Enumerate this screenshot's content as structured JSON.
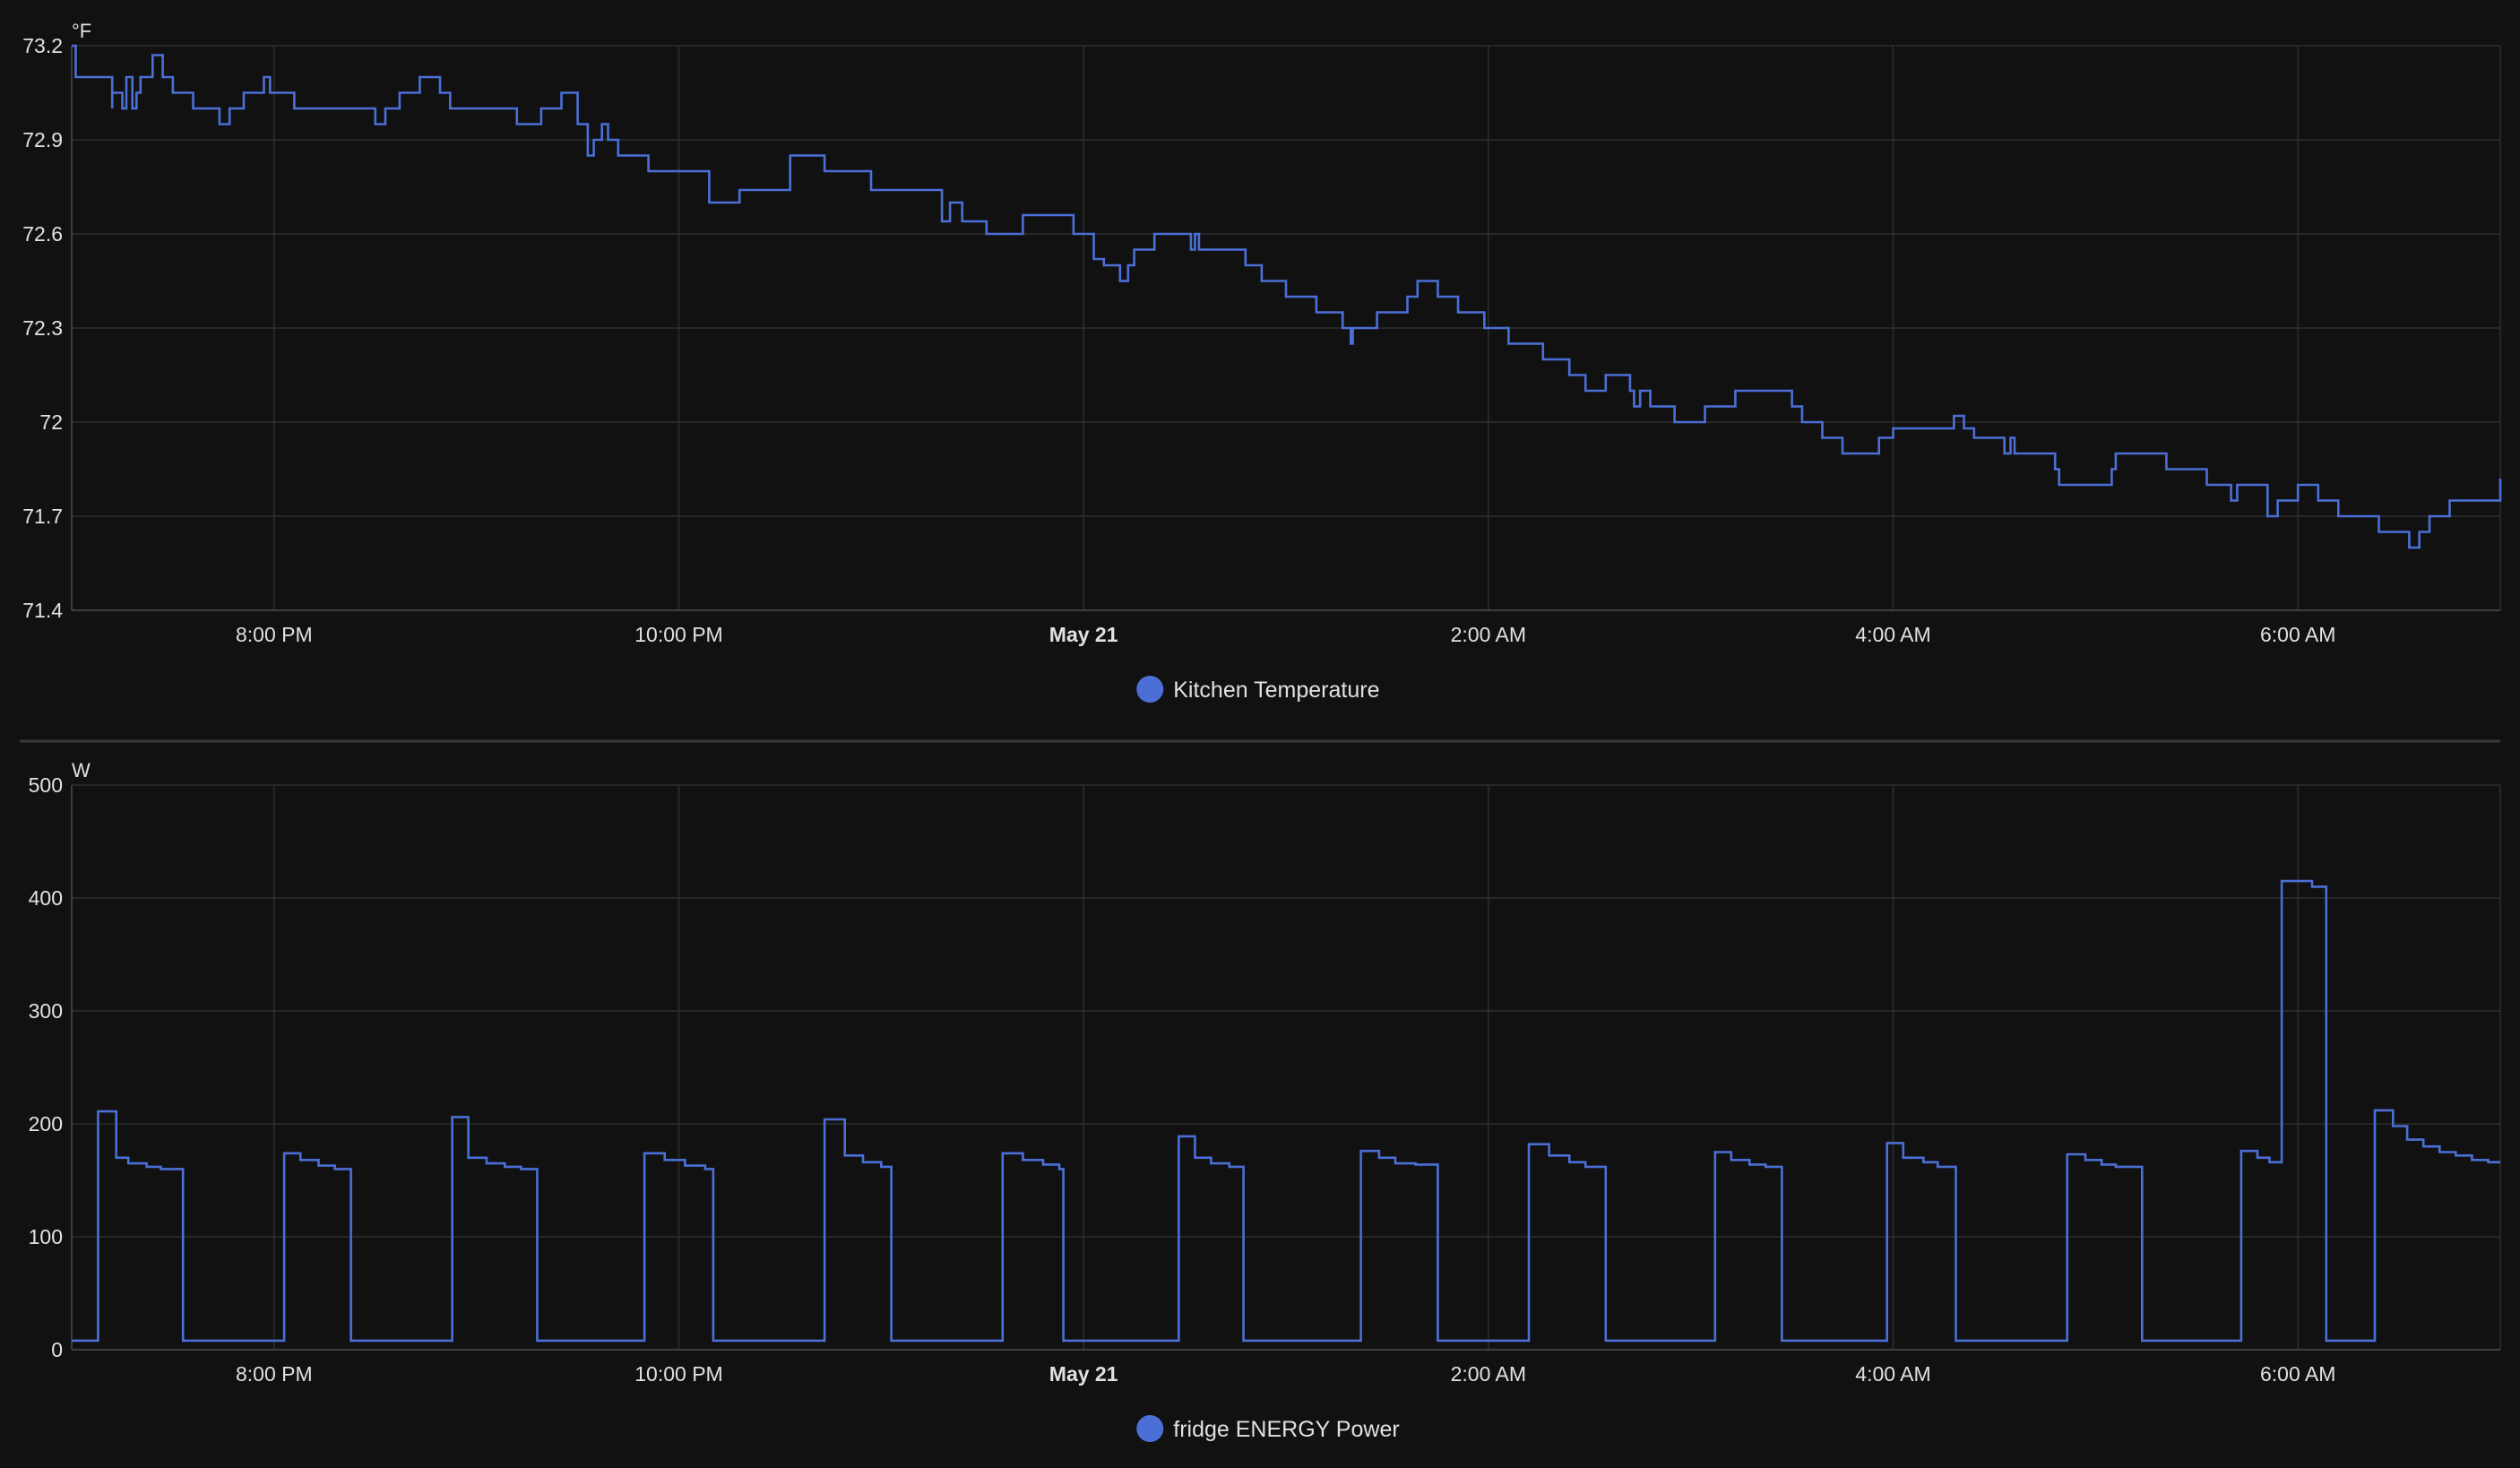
{
  "colors": {
    "background": "#111111",
    "series": "#4b6fd6",
    "grid": "#2f2f2f",
    "divider": "#3a3a3a",
    "text": "#e1e1e1"
  },
  "chart_data": [
    {
      "type": "line",
      "step": true,
      "unit": "°F",
      "x_ticks": [
        "8:00 PM",
        "10:00 PM",
        "May 21",
        "2:00 AM",
        "4:00 AM",
        "6:00 AM"
      ],
      "x_ticks_bold": [
        false,
        false,
        true,
        false,
        false,
        false
      ],
      "x_range_hours": [
        -5.0,
        7.0
      ],
      "x_tick_hours": [
        -4,
        -2,
        0,
        2,
        4,
        6
      ],
      "y_ticks": [
        "73.2",
        "72.9",
        "72.6",
        "72.3",
        "72",
        "71.7",
        "71.4"
      ],
      "ylim": [
        71.4,
        73.2
      ],
      "grid": true,
      "legend_position": "bottom-center",
      "series": [
        {
          "name": "Kitchen Temperature",
          "x": [
            -5.0,
            -4.98,
            -4.8,
            -4.8,
            -4.75,
            -4.73,
            -4.7,
            -4.68,
            -4.66,
            -4.62,
            -4.6,
            -4.55,
            -4.5,
            -4.4,
            -4.27,
            -4.22,
            -4.15,
            -4.05,
            -4.02,
            -3.9,
            -3.5,
            -3.45,
            -3.38,
            -3.28,
            -3.18,
            -3.13,
            -2.8,
            -2.68,
            -2.58,
            -2.5,
            -2.45,
            -2.42,
            -2.38,
            -2.35,
            -2.3,
            -2.15,
            -1.85,
            -1.7,
            -1.45,
            -1.28,
            -1.05,
            -0.7,
            -0.66,
            -0.6,
            -0.48,
            -0.3,
            -0.05,
            0.05,
            0.1,
            0.18,
            0.22,
            0.25,
            0.35,
            0.53,
            0.55,
            0.57,
            0.8,
            0.88,
            1.0,
            1.15,
            1.28,
            1.32,
            1.33,
            1.45,
            1.6,
            1.65,
            1.75,
            1.85,
            1.98,
            2.1,
            2.27,
            2.4,
            2.48,
            2.58,
            2.7,
            2.72,
            2.75,
            2.8,
            2.92,
            3.07,
            3.22,
            3.5,
            3.55,
            3.65,
            3.75,
            3.93,
            4.0,
            4.3,
            4.35,
            4.4,
            4.55,
            4.58,
            4.6,
            4.8,
            4.82,
            5.08,
            5.1,
            5.35,
            5.55,
            5.67,
            5.7,
            5.85,
            5.9,
            6.0,
            6.1,
            6.2,
            6.4,
            6.55,
            6.6,
            6.65,
            6.75,
            7.0
          ],
          "values": [
            73.2,
            73.1,
            73.0,
            73.05,
            73.0,
            73.1,
            73.0,
            73.05,
            73.1,
            73.1,
            73.17,
            73.1,
            73.05,
            73.0,
            72.95,
            73.0,
            73.05,
            73.1,
            73.05,
            73.0,
            72.95,
            73.0,
            73.05,
            73.1,
            73.05,
            73.0,
            72.95,
            73.0,
            73.05,
            72.95,
            72.85,
            72.9,
            72.95,
            72.9,
            72.85,
            72.8,
            72.7,
            72.74,
            72.85,
            72.8,
            72.74,
            72.64,
            72.7,
            72.64,
            72.6,
            72.66,
            72.6,
            72.52,
            72.5,
            72.45,
            72.5,
            72.55,
            72.6,
            72.55,
            72.6,
            72.55,
            72.5,
            72.45,
            72.4,
            72.35,
            72.3,
            72.25,
            72.3,
            72.35,
            72.4,
            72.45,
            72.4,
            72.35,
            72.3,
            72.25,
            72.2,
            72.15,
            72.1,
            72.15,
            72.1,
            72.05,
            72.1,
            72.05,
            72.0,
            72.05,
            72.1,
            72.05,
            72.0,
            71.95,
            71.9,
            71.95,
            71.98,
            72.02,
            71.98,
            71.95,
            71.9,
            71.95,
            71.9,
            71.85,
            71.8,
            71.85,
            71.9,
            71.85,
            71.8,
            71.75,
            71.8,
            71.7,
            71.75,
            71.8,
            71.75,
            71.7,
            71.65,
            71.6,
            71.65,
            71.7,
            71.75,
            71.82
          ]
        }
      ]
    },
    {
      "type": "line",
      "step": true,
      "unit": "W",
      "x_ticks": [
        "8:00 PM",
        "10:00 PM",
        "May 21",
        "2:00 AM",
        "4:00 AM",
        "6:00 AM"
      ],
      "x_ticks_bold": [
        false,
        false,
        true,
        false,
        false,
        false
      ],
      "x_range_hours": [
        -5.0,
        7.0
      ],
      "x_tick_hours": [
        -4,
        -2,
        0,
        2,
        4,
        6
      ],
      "y_ticks": [
        "500",
        "400",
        "300",
        "200",
        "100",
        "0"
      ],
      "ylim": [
        0,
        500
      ],
      "grid": true,
      "legend_position": "bottom-center",
      "series": [
        {
          "name": "fridge ENERGY Power",
          "x": [
            -5.0,
            -4.87,
            -4.78,
            -4.72,
            -4.63,
            -4.56,
            -4.45,
            -4.41,
            -3.95,
            -3.87,
            -3.78,
            -3.7,
            -3.62,
            -3.53,
            -3.12,
            -3.04,
            -2.95,
            -2.86,
            -2.78,
            -2.7,
            -2.25,
            -2.17,
            -2.07,
            -1.97,
            -1.87,
            -1.83,
            -1.36,
            -1.28,
            -1.18,
            -1.09,
            -1.0,
            -0.95,
            -0.47,
            -0.4,
            -0.3,
            -0.2,
            -0.12,
            -0.1,
            0.38,
            0.47,
            0.55,
            0.63,
            0.72,
            0.79,
            1.29,
            1.37,
            1.46,
            1.54,
            1.64,
            1.75,
            2.12,
            2.2,
            2.3,
            2.4,
            2.48,
            2.58,
            3.05,
            3.12,
            3.2,
            3.29,
            3.37,
            3.45,
            3.88,
            3.97,
            4.05,
            4.15,
            4.22,
            4.31,
            4.78,
            4.86,
            4.95,
            5.03,
            5.1,
            5.23,
            5.63,
            5.72,
            5.8,
            5.86,
            5.92,
            6.07,
            6.14,
            6.38,
            6.47,
            6.54,
            6.62,
            6.7,
            6.78,
            6.86,
            6.94,
            7.0
          ],
          "values": [
            8,
            211,
            170,
            165,
            162,
            160,
            8,
            8,
            174,
            168,
            163,
            160,
            8,
            8,
            206,
            170,
            165,
            162,
            160,
            8,
            8,
            174,
            168,
            163,
            160,
            8,
            8,
            204,
            172,
            166,
            162,
            8,
            8,
            174,
            168,
            164,
            160,
            8,
            8,
            189,
            170,
            165,
            162,
            8,
            8,
            176,
            170,
            165,
            164,
            8,
            8,
            182,
            172,
            166,
            162,
            8,
            8,
            175,
            168,
            164,
            162,
            8,
            8,
            183,
            170,
            166,
            162,
            8,
            8,
            173,
            168,
            164,
            162,
            8,
            8,
            176,
            170,
            166,
            415,
            410,
            8,
            212,
            198,
            186,
            180,
            175,
            172,
            168,
            166,
            166
          ]
        }
      ]
    }
  ]
}
